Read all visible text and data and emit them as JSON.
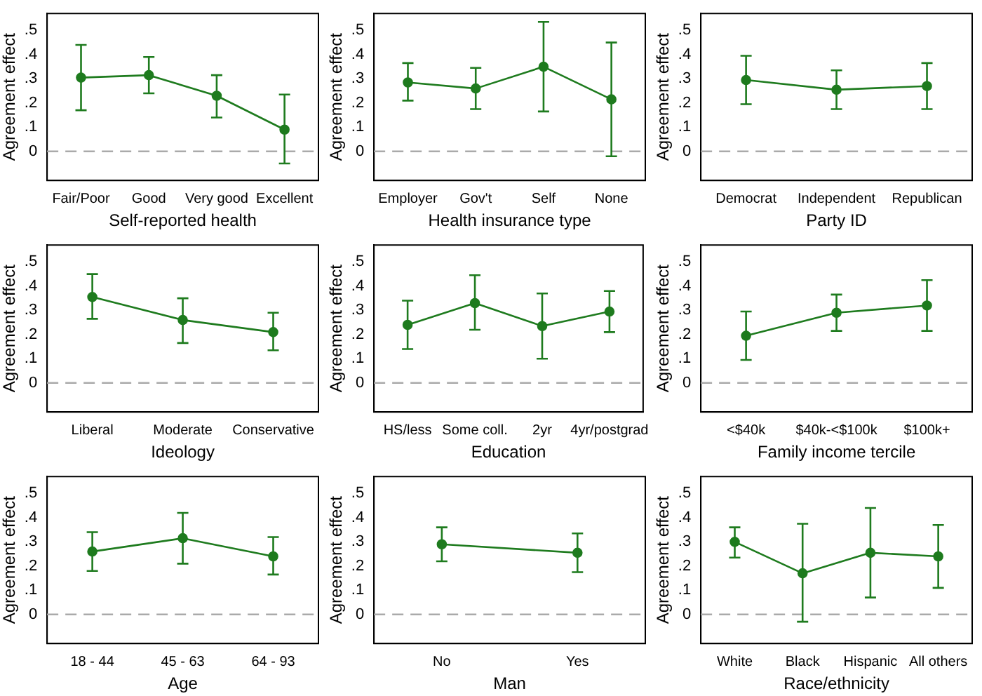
{
  "chart_data": [
    {
      "type": "line",
      "xlabel": "Self-reported health",
      "ylabel": "Agreement effect",
      "categories": [
        "Fair/Poor",
        "Good",
        "Very good",
        "Excellent"
      ],
      "series": [
        {
          "color": "#1e7b1e",
          "values": [
            0.305,
            0.315,
            0.23,
            0.09
          ],
          "errors": [
            [
              0.17,
              0.44
            ],
            [
              0.24,
              0.39
            ],
            [
              0.14,
              0.315
            ],
            [
              -0.05,
              0.235
            ]
          ]
        }
      ],
      "ylim": [
        -0.12,
        0.57
      ],
      "yticks": [
        {
          "value": 0,
          "label": "0"
        },
        {
          "value": 0.1,
          "label": ".1"
        },
        {
          "value": 0.2,
          "label": ".2"
        },
        {
          "value": 0.3,
          "label": ".3"
        },
        {
          "value": 0.4,
          "label": ".4"
        },
        {
          "value": 0.5,
          "label": ".5"
        }
      ],
      "ref_lines": [
        {
          "axis": "y",
          "value": 0,
          "color": "#aaaaaa",
          "line_style": "dashed"
        }
      ],
      "grid": false,
      "legend": false,
      "marker": "circle",
      "line_style": "solid"
    },
    {
      "type": "line",
      "xlabel": "Health insurance type",
      "ylabel": "Agreement effect",
      "categories": [
        "Employer",
        "Gov't",
        "Self",
        "None"
      ],
      "series": [
        {
          "color": "#1e7b1e",
          "values": [
            0.285,
            0.26,
            0.35,
            0.215
          ],
          "errors": [
            [
              0.21,
              0.365
            ],
            [
              0.175,
              0.345
            ],
            [
              0.165,
              0.535
            ],
            [
              -0.02,
              0.45
            ]
          ]
        }
      ],
      "ylim": [
        -0.12,
        0.57
      ],
      "yticks": [
        {
          "value": 0,
          "label": "0"
        },
        {
          "value": 0.1,
          "label": ".1"
        },
        {
          "value": 0.2,
          "label": ".2"
        },
        {
          "value": 0.3,
          "label": ".3"
        },
        {
          "value": 0.4,
          "label": ".4"
        },
        {
          "value": 0.5,
          "label": ".5"
        }
      ],
      "ref_lines": [
        {
          "axis": "y",
          "value": 0,
          "color": "#aaaaaa",
          "line_style": "dashed"
        }
      ],
      "grid": false,
      "legend": false,
      "marker": "circle",
      "line_style": "solid"
    },
    {
      "type": "line",
      "xlabel": "Party ID",
      "ylabel": "Agreement effect",
      "categories": [
        "Democrat",
        "Independent",
        "Republican"
      ],
      "series": [
        {
          "color": "#1e7b1e",
          "values": [
            0.295,
            0.255,
            0.27
          ],
          "errors": [
            [
              0.195,
              0.395
            ],
            [
              0.175,
              0.335
            ],
            [
              0.175,
              0.365
            ]
          ]
        }
      ],
      "ylim": [
        -0.12,
        0.57
      ],
      "yticks": [
        {
          "value": 0,
          "label": "0"
        },
        {
          "value": 0.1,
          "label": ".1"
        },
        {
          "value": 0.2,
          "label": ".2"
        },
        {
          "value": 0.3,
          "label": ".3"
        },
        {
          "value": 0.4,
          "label": ".4"
        },
        {
          "value": 0.5,
          "label": ".5"
        }
      ],
      "ref_lines": [
        {
          "axis": "y",
          "value": 0,
          "color": "#aaaaaa",
          "line_style": "dashed"
        }
      ],
      "grid": false,
      "legend": false,
      "marker": "circle",
      "line_style": "solid"
    },
    {
      "type": "line",
      "xlabel": "Ideology",
      "ylabel": "Agreement effect",
      "categories": [
        "Liberal",
        "Moderate",
        "Conservative"
      ],
      "series": [
        {
          "color": "#1e7b1e",
          "values": [
            0.355,
            0.26,
            0.21
          ],
          "errors": [
            [
              0.265,
              0.45
            ],
            [
              0.165,
              0.35
            ],
            [
              0.135,
              0.29
            ]
          ]
        }
      ],
      "ylim": [
        -0.12,
        0.57
      ],
      "yticks": [
        {
          "value": 0,
          "label": "0"
        },
        {
          "value": 0.1,
          "label": ".1"
        },
        {
          "value": 0.2,
          "label": ".2"
        },
        {
          "value": 0.3,
          "label": ".3"
        },
        {
          "value": 0.4,
          "label": ".4"
        },
        {
          "value": 0.5,
          "label": ".5"
        }
      ],
      "ref_lines": [
        {
          "axis": "y",
          "value": 0,
          "color": "#aaaaaa",
          "line_style": "dashed"
        }
      ],
      "grid": false,
      "legend": false,
      "marker": "circle",
      "line_style": "solid"
    },
    {
      "type": "line",
      "xlabel": "Education",
      "ylabel": "Agreement effect",
      "categories": [
        "HS/less",
        "Some coll.",
        "2yr",
        "4yr/postgrad"
      ],
      "series": [
        {
          "color": "#1e7b1e",
          "values": [
            0.24,
            0.33,
            0.235,
            0.295
          ],
          "errors": [
            [
              0.14,
              0.34
            ],
            [
              0.22,
              0.445
            ],
            [
              0.1,
              0.37
            ],
            [
              0.21,
              0.38
            ]
          ]
        }
      ],
      "ylim": [
        -0.12,
        0.57
      ],
      "yticks": [
        {
          "value": 0,
          "label": "0"
        },
        {
          "value": 0.1,
          "label": ".1"
        },
        {
          "value": 0.2,
          "label": ".2"
        },
        {
          "value": 0.3,
          "label": ".3"
        },
        {
          "value": 0.4,
          "label": ".4"
        },
        {
          "value": 0.5,
          "label": ".5"
        }
      ],
      "ref_lines": [
        {
          "axis": "y",
          "value": 0,
          "color": "#aaaaaa",
          "line_style": "dashed"
        }
      ],
      "grid": false,
      "legend": false,
      "marker": "circle",
      "line_style": "solid"
    },
    {
      "type": "line",
      "xlabel": "Family income tercile",
      "ylabel": "Agreement effect",
      "categories": [
        "<$40k",
        "$40k-<$100k",
        "$100k+"
      ],
      "series": [
        {
          "color": "#1e7b1e",
          "values": [
            0.195,
            0.29,
            0.32
          ],
          "errors": [
            [
              0.095,
              0.295
            ],
            [
              0.215,
              0.365
            ],
            [
              0.215,
              0.425
            ]
          ]
        }
      ],
      "ylim": [
        -0.12,
        0.57
      ],
      "yticks": [
        {
          "value": 0,
          "label": "0"
        },
        {
          "value": 0.1,
          "label": ".1"
        },
        {
          "value": 0.2,
          "label": ".2"
        },
        {
          "value": 0.3,
          "label": ".3"
        },
        {
          "value": 0.4,
          "label": ".4"
        },
        {
          "value": 0.5,
          "label": ".5"
        }
      ],
      "ref_lines": [
        {
          "axis": "y",
          "value": 0,
          "color": "#aaaaaa",
          "line_style": "dashed"
        }
      ],
      "grid": false,
      "legend": false,
      "marker": "circle",
      "line_style": "solid"
    },
    {
      "type": "line",
      "xlabel": "Age",
      "ylabel": "Agreement effect",
      "categories": [
        "18 - 44",
        "45 - 63",
        "64 - 93"
      ],
      "series": [
        {
          "color": "#1e7b1e",
          "values": [
            0.26,
            0.315,
            0.24
          ],
          "errors": [
            [
              0.18,
              0.34
            ],
            [
              0.21,
              0.42
            ],
            [
              0.165,
              0.32
            ]
          ]
        }
      ],
      "ylim": [
        -0.12,
        0.57
      ],
      "yticks": [
        {
          "value": 0,
          "label": "0"
        },
        {
          "value": 0.1,
          "label": ".1"
        },
        {
          "value": 0.2,
          "label": ".2"
        },
        {
          "value": 0.3,
          "label": ".3"
        },
        {
          "value": 0.4,
          "label": ".4"
        },
        {
          "value": 0.5,
          "label": ".5"
        }
      ],
      "ref_lines": [
        {
          "axis": "y",
          "value": 0,
          "color": "#aaaaaa",
          "line_style": "dashed"
        }
      ],
      "grid": false,
      "legend": false,
      "marker": "circle",
      "line_style": "solid"
    },
    {
      "type": "line",
      "xlabel": "Man",
      "ylabel": "Agreement effect",
      "categories": [
        "No",
        "Yes"
      ],
      "series": [
        {
          "color": "#1e7b1e",
          "values": [
            0.29,
            0.255
          ],
          "errors": [
            [
              0.22,
              0.36
            ],
            [
              0.175,
              0.335
            ]
          ]
        }
      ],
      "ylim": [
        -0.12,
        0.57
      ],
      "yticks": [
        {
          "value": 0,
          "label": "0"
        },
        {
          "value": 0.1,
          "label": ".1"
        },
        {
          "value": 0.2,
          "label": ".2"
        },
        {
          "value": 0.3,
          "label": ".3"
        },
        {
          "value": 0.4,
          "label": ".4"
        },
        {
          "value": 0.5,
          "label": ".5"
        }
      ],
      "ref_lines": [
        {
          "axis": "y",
          "value": 0,
          "color": "#aaaaaa",
          "line_style": "dashed"
        }
      ],
      "grid": false,
      "legend": false,
      "marker": "circle",
      "line_style": "solid"
    },
    {
      "type": "line",
      "xlabel": "Race/ethnicity",
      "ylabel": "Agreement effect",
      "categories": [
        "White",
        "Black",
        "Hispanic",
        "All others"
      ],
      "series": [
        {
          "color": "#1e7b1e",
          "values": [
            0.3,
            0.17,
            0.255,
            0.24
          ],
          "errors": [
            [
              0.235,
              0.36
            ],
            [
              -0.03,
              0.375
            ],
            [
              0.07,
              0.44
            ],
            [
              0.11,
              0.37
            ]
          ]
        }
      ],
      "ylim": [
        -0.12,
        0.57
      ],
      "yticks": [
        {
          "value": 0,
          "label": "0"
        },
        {
          "value": 0.1,
          "label": ".1"
        },
        {
          "value": 0.2,
          "label": ".2"
        },
        {
          "value": 0.3,
          "label": ".3"
        },
        {
          "value": 0.4,
          "label": ".4"
        },
        {
          "value": 0.5,
          "label": ".5"
        }
      ],
      "ref_lines": [
        {
          "axis": "y",
          "value": 0,
          "color": "#aaaaaa",
          "line_style": "dashed"
        }
      ],
      "grid": false,
      "legend": false,
      "marker": "circle",
      "line_style": "solid"
    }
  ]
}
